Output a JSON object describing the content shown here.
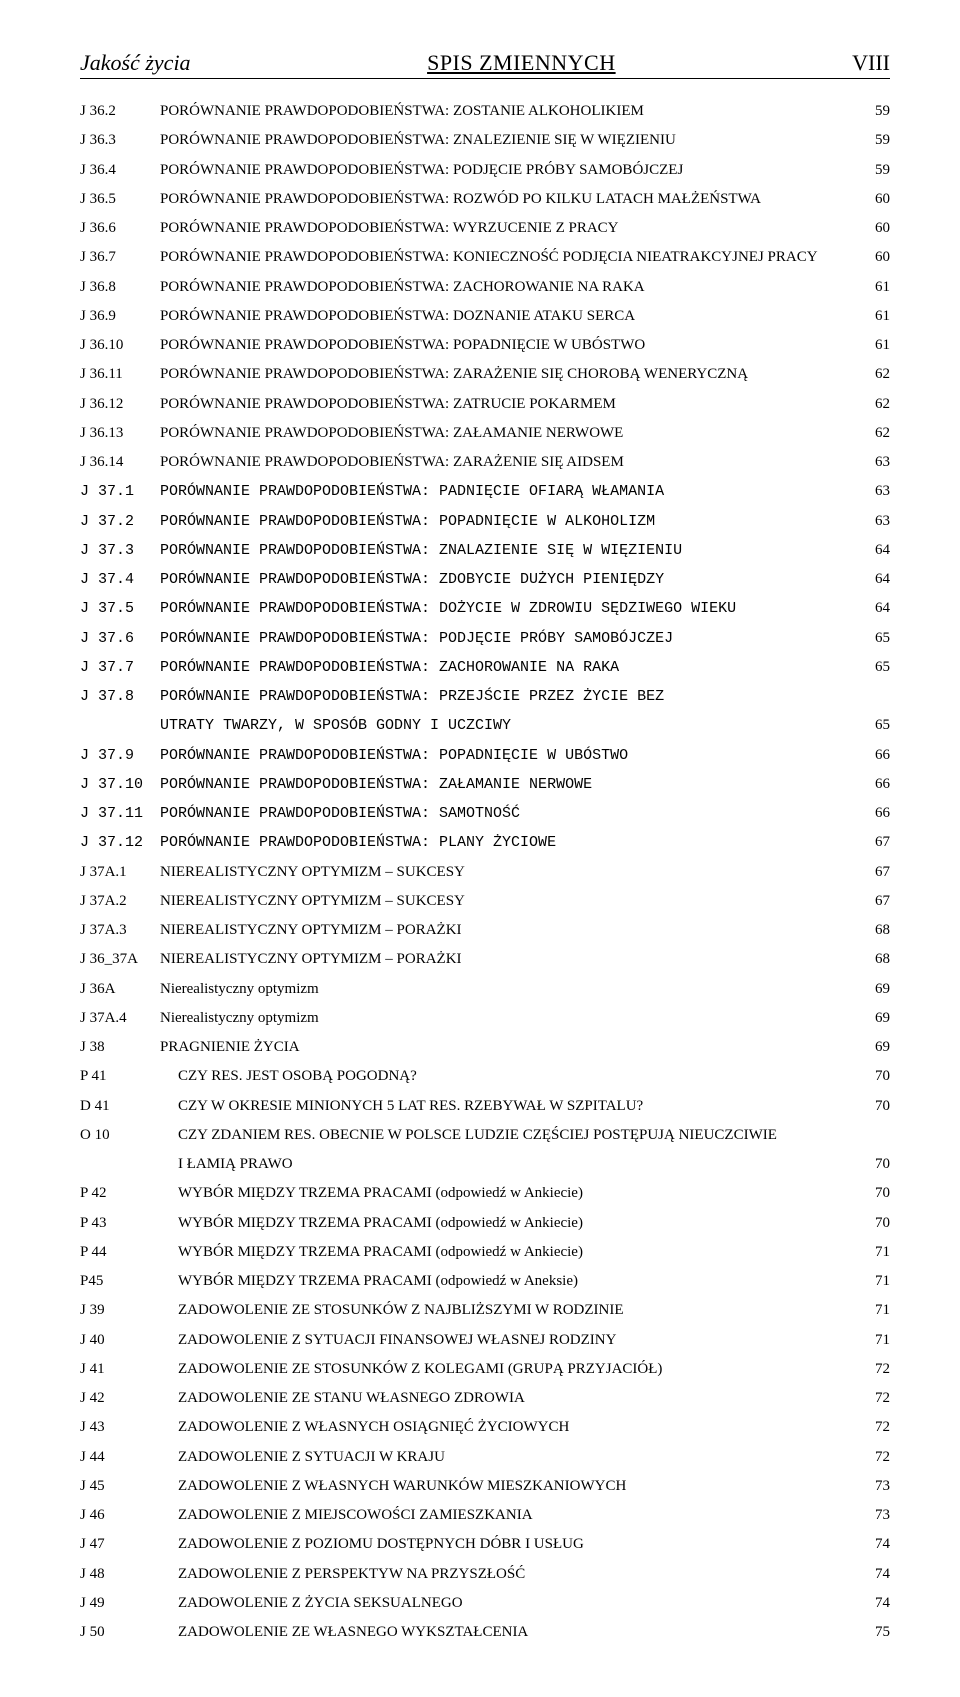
{
  "header": {
    "left": "Jakość życia",
    "center": "SPIS ZMIENNYCH",
    "right": "VIII"
  },
  "rows": [
    {
      "code": "J 36.2",
      "desc": "PORÓWNANIE PRAWDOPODOBIEŃSTWA: ZOSTANIE ALKOHOLIKIEM",
      "page": "59",
      "mono": false
    },
    {
      "code": "J 36.3",
      "desc": "PORÓWNANIE PRAWDOPODOBIEŃSTWA: ZNALEZIENIE SIĘ W WIĘZIENIU",
      "page": "59",
      "mono": false
    },
    {
      "code": "J 36.4",
      "desc": "PORÓWNANIE PRAWDOPODOBIEŃSTWA: PODJĘCIE PRÓBY SAMOBÓJCZEJ",
      "page": "59",
      "mono": false
    },
    {
      "code": "J 36.5",
      "desc": "PORÓWNANIE PRAWDOPODOBIEŃSTWA: ROZWÓD PO KILKU LATACH MAŁŻEŃSTWA",
      "page": "60",
      "mono": false
    },
    {
      "code": "J 36.6",
      "desc": "PORÓWNANIE PRAWDOPODOBIEŃSTWA: WYRZUCENIE Z PRACY",
      "page": "60",
      "mono": false
    },
    {
      "code": "J 36.7",
      "desc": "PORÓWNANIE PRAWDOPODOBIEŃSTWA: KONIECZNOŚĆ PODJĘCIA NIEATRAKCYJNEJ PRACY",
      "page": "60",
      "mono": false
    },
    {
      "code": "J 36.8",
      "desc": "PORÓWNANIE PRAWDOPODOBIEŃSTWA: ZACHOROWANIE NA RAKA",
      "page": "61",
      "mono": false
    },
    {
      "code": "J 36.9",
      "desc": "PORÓWNANIE PRAWDOPODOBIEŃSTWA: DOZNANIE ATAKU SERCA",
      "page": "61",
      "mono": false
    },
    {
      "code": "J 36.10",
      "desc": "PORÓWNANIE PRAWDOPODOBIEŃSTWA: POPADNIĘCIE W UBÓSTWO",
      "page": "61",
      "mono": false
    },
    {
      "code": "J 36.11",
      "desc": "PORÓWNANIE PRAWDOPODOBIEŃSTWA: ZARAŻENIE SIĘ CHOROBĄ WENERYCZNĄ",
      "page": "62",
      "mono": false
    },
    {
      "code": "J 36.12",
      "desc": "PORÓWNANIE PRAWDOPODOBIEŃSTWA: ZATRUCIE POKARMEM",
      "page": "62",
      "mono": false
    },
    {
      "code": "J 36.13",
      "desc": "PORÓWNANIE PRAWDOPODOBIEŃSTWA: ZAŁAMANIE NERWOWE",
      "page": "62",
      "mono": false
    },
    {
      "code": "J 36.14",
      "desc": "PORÓWNANIE PRAWDOPODOBIEŃSTWA: ZARAŻENIE SIĘ AIDSEM",
      "page": "63",
      "mono": false
    },
    {
      "code": "J 37.1",
      "desc": "PORÓWNANIE PRAWDOPODOBIEŃSTWA: PADNIĘCIE OFIARĄ WŁAMANIA",
      "page": "63",
      "mono": true
    },
    {
      "code": "J 37.2",
      "desc": "PORÓWNANIE PRAWDOPODOBIEŃSTWA: POPADNIĘCIE W ALKOHOLIZM",
      "page": "63",
      "mono": true
    },
    {
      "code": "J 37.3",
      "desc": "PORÓWNANIE PRAWDOPODOBIEŃSTWA: ZNALAZIENIE SIĘ W WIĘZIENIU",
      "page": "64",
      "mono": true
    },
    {
      "code": "J 37.4",
      "desc": "PORÓWNANIE PRAWDOPODOBIEŃSTWA: ZDOBYCIE DUŻYCH PIENIĘDZY",
      "page": "64",
      "mono": true
    },
    {
      "code": "J 37.5",
      "desc": "PORÓWNANIE PRAWDOPODOBIEŃSTWA: DOŻYCIE W ZDROWIU SĘDZIWEGO WIEKU",
      "page": "64",
      "mono": true
    },
    {
      "code": "J 37.6",
      "desc": "PORÓWNANIE PRAWDOPODOBIEŃSTWA: PODJĘCIE PRÓBY SAMOBÓJCZEJ",
      "page": "65",
      "mono": true
    },
    {
      "code": "J 37.7",
      "desc": "PORÓWNANIE PRAWDOPODOBIEŃSTWA: ZACHOROWANIE NA RAKA",
      "page": "65",
      "mono": true
    },
    {
      "code": "J 37.8",
      "desc": "PORÓWNANIE PRAWDOPODOBIEŃSTWA: PRZEJŚCIE PRZEZ ŻYCIE BEZ",
      "page": "",
      "mono": true
    },
    {
      "code": "",
      "desc": "UTRATY TWARZY, W SPOSÓB GODNY I UCZCIWY",
      "page": "65",
      "mono": true,
      "cont": true
    },
    {
      "code": "J 37.9",
      "desc": "PORÓWNANIE PRAWDOPODOBIEŃSTWA: POPADNIĘCIE W UBÓSTWO",
      "page": "66",
      "mono": true
    },
    {
      "code": "J 37.10",
      "desc": "PORÓWNANIE PRAWDOPODOBIEŃSTWA: ZAŁAMANIE NERWOWE",
      "page": "66",
      "mono": true
    },
    {
      "code": "J 37.11",
      "desc": "PORÓWNANIE PRAWDOPODOBIEŃSTWA: SAMOTNOŚĆ",
      "page": "66",
      "mono": true
    },
    {
      "code": "J 37.12",
      "desc": "PORÓWNANIE PRAWDOPODOBIEŃSTWA: PLANY ŻYCIOWE",
      "page": "67",
      "mono": true
    },
    {
      "code": "J 37A.1",
      "desc": "NIEREALISTYCZNY OPTYMIZM – SUKCESY",
      "page": "67",
      "mono": false
    },
    {
      "code": "J 37A.2",
      "desc": "NIEREALISTYCZNY OPTYMIZM – SUKCESY",
      "page": "67",
      "mono": false
    },
    {
      "code": "J 37A.3",
      "desc": "NIEREALISTYCZNY OPTYMIZM – PORAŻKI",
      "page": "68",
      "mono": false
    },
    {
      "code": "J 36_37A",
      "desc": "NIEREALISTYCZNY OPTYMIZM – PORAŻKI",
      "page": "68",
      "mono": false
    },
    {
      "code": "J 36A",
      "desc": "Nierealistyczny optymizm",
      "page": "69",
      "mono": false
    },
    {
      "code": "J 37A.4",
      "desc": "Nierealistyczny optymizm",
      "page": "69",
      "mono": false
    },
    {
      "code": "J 38",
      "desc": "PRAGNIENIE ŻYCIA",
      "page": "69",
      "mono": false
    },
    {
      "code": "P 41",
      "desc": "CZY RES. JEST OSOBĄ POGODNĄ?",
      "page": "70",
      "mono": false,
      "indent": true
    },
    {
      "code": "D 41",
      "desc": "CZY W OKRESIE MINIONYCH 5 LAT RES. RZEBYWAŁ W SZPITALU?",
      "page": "70",
      "mono": false,
      "indent": true
    },
    {
      "code": "O 10",
      "desc": "CZY ZDANIEM RES. OBECNIE W POLSCE LUDZIE CZĘŚCIEJ POSTĘPUJĄ NIEUCZCIWIE",
      "page": "",
      "mono": false,
      "indent": true
    },
    {
      "code": "",
      "desc": "I ŁAMIĄ PRAWO",
      "page": "70",
      "mono": false,
      "indent": true,
      "cont": true
    },
    {
      "code": "P 42",
      "desc": "WYBÓR MIĘDZY TRZEMA PRACAMI (odpowiedź w Ankiecie)",
      "page": "70",
      "mono": false,
      "indent": true
    },
    {
      "code": "P 43",
      "desc": "WYBÓR MIĘDZY TRZEMA PRACAMI (odpowiedź w Ankiecie)",
      "page": "70",
      "mono": false,
      "indent": true
    },
    {
      "code": "P 44",
      "desc": "WYBÓR MIĘDZY TRZEMA PRACAMI (odpowiedź w Ankiecie)",
      "page": "71",
      "mono": false,
      "indent": true
    },
    {
      "code": "P45",
      "desc": "WYBÓR MIĘDZY TRZEMA PRACAMI (odpowiedź w Aneksie)",
      "page": "71",
      "mono": false,
      "indent": true
    },
    {
      "code": "J 39",
      "desc": "ZADOWOLENIE ZE STOSUNKÓW Z NAJBLIŻSZYMI W RODZINIE",
      "page": "71",
      "mono": false,
      "indent": true
    },
    {
      "code": "J 40",
      "desc": "ZADOWOLENIE Z SYTUACJI FINANSOWEJ WŁASNEJ RODZINY",
      "page": "71",
      "mono": false,
      "indent": true
    },
    {
      "code": "J 41",
      "desc": "ZADOWOLENIE ZE STOSUNKÓW Z KOLEGAMI (GRUPĄ PRZYJACIÓŁ)",
      "page": "72",
      "mono": false,
      "indent": true
    },
    {
      "code": "J 42",
      "desc": "ZADOWOLENIE ZE STANU WŁASNEGO ZDROWIA",
      "page": "72",
      "mono": false,
      "indent": true
    },
    {
      "code": "J 43",
      "desc": "ZADOWOLENIE Z WŁASNYCH OSIĄGNIĘĆ ŻYCIOWYCH",
      "page": "72",
      "mono": false,
      "indent": true
    },
    {
      "code": "J 44",
      "desc": "ZADOWOLENIE Z SYTUACJI W KRAJU",
      "page": "72",
      "mono": false,
      "indent": true
    },
    {
      "code": "J 45",
      "desc": "ZADOWOLENIE Z WŁASNYCH WARUNKÓW MIESZKANIOWYCH",
      "page": "73",
      "mono": false,
      "indent": true
    },
    {
      "code": "J 46",
      "desc": "ZADOWOLENIE Z MIEJSCOWOŚCI ZAMIESZKANIA",
      "page": "73",
      "mono": false,
      "indent": true
    },
    {
      "code": "J 47",
      "desc": "ZADOWOLENIE Z POZIOMU DOSTĘPNYCH DÓBR I USŁUG",
      "page": "74",
      "mono": false,
      "indent": true
    },
    {
      "code": "J 48",
      "desc": "ZADOWOLENIE Z PERSPEKTYW NA PRZYSZŁOŚĆ",
      "page": "74",
      "mono": false,
      "indent": true
    },
    {
      "code": "J 49",
      "desc": "ZADOWOLENIE Z ŻYCIA SEKSUALNEGO",
      "page": "74",
      "mono": false,
      "indent": true
    },
    {
      "code": "J 50",
      "desc": "ZADOWOLENIE ZE WŁASNEGO WYKSZTAŁCENIA",
      "page": "75",
      "mono": false,
      "indent": true
    }
  ]
}
